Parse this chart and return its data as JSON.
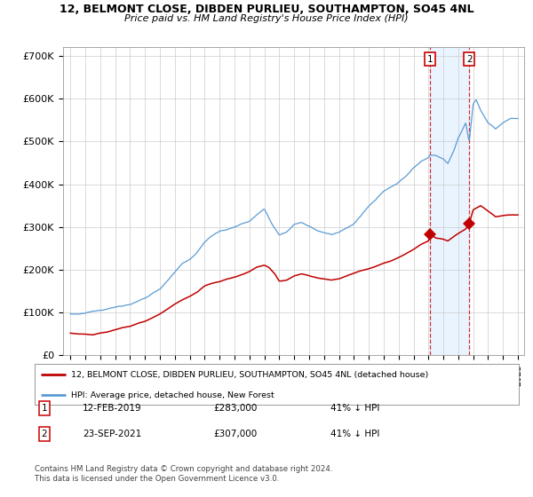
{
  "title_line1": "12, BELMONT CLOSE, DIBDEN PURLIEU, SOUTHAMPTON, SO45 4NL",
  "title_line2": "Price paid vs. HM Land Registry's House Price Index (HPI)",
  "ylabel_ticks": [
    "£0",
    "£100K",
    "£200K",
    "£300K",
    "£400K",
    "£500K",
    "£600K",
    "£700K"
  ],
  "ytick_values": [
    0,
    100000,
    200000,
    300000,
    400000,
    500000,
    600000,
    700000
  ],
  "ylim": [
    0,
    720000
  ],
  "hpi_color": "#5b9bd5",
  "price_color": "#c00000",
  "sale1_price": 283000,
  "sale1_x": 2019.12,
  "sale2_price": 307000,
  "sale2_x": 2021.73,
  "legend_line1": "12, BELMONT CLOSE, DIBDEN PURLIEU, SOUTHAMPTON, SO45 4NL (detached house)",
  "legend_line2": "HPI: Average price, detached house, New Forest",
  "footer": "Contains HM Land Registry data © Crown copyright and database right 2024.\nThis data is licensed under the Open Government Licence v3.0.",
  "bg_color": "#ffffff",
  "grid_color": "#cccccc",
  "shaded_color": "#ddeeff"
}
